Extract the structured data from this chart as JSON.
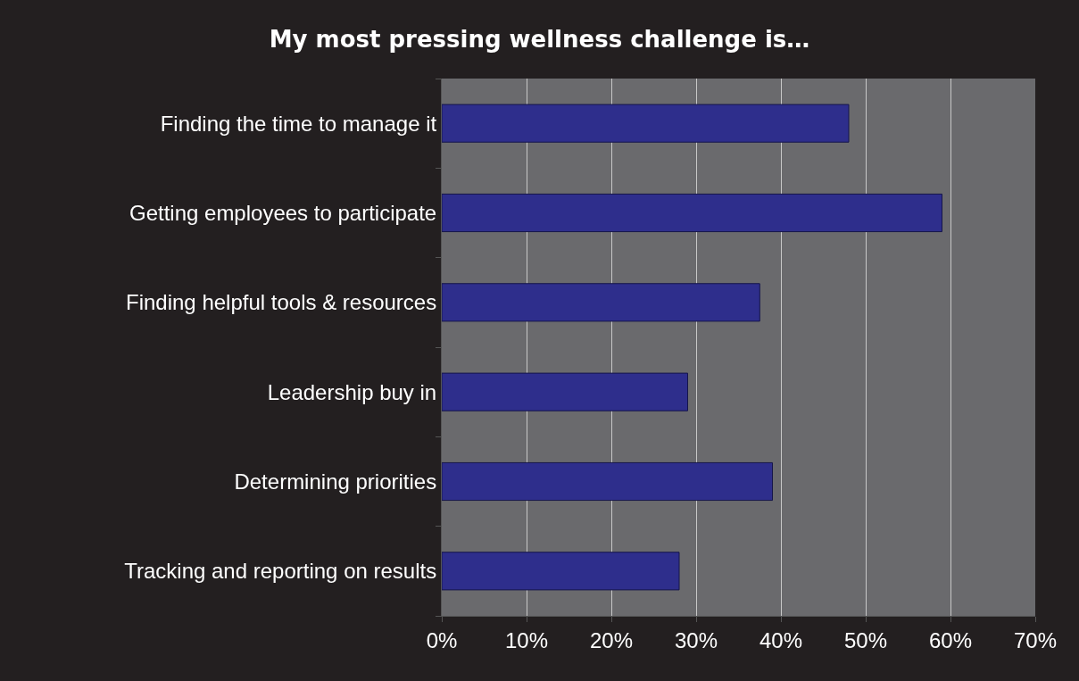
{
  "chart_data": {
    "type": "bar",
    "orientation": "horizontal",
    "title": "My most pressing wellness challenge is…",
    "categories": [
      "Finding the time to manage it",
      "Getting employees to participate",
      "Finding helpful tools & resources",
      "Leadership buy in",
      "Determining priorities",
      "Tracking and reporting on results"
    ],
    "values": [
      48,
      59,
      37.5,
      29,
      39,
      28
    ],
    "color": "#2e2e8c",
    "xlim": [
      0,
      70
    ],
    "xticks": [
      {
        "value": 0,
        "label": "0%"
      },
      {
        "value": 10,
        "label": "10%"
      },
      {
        "value": 20,
        "label": "20%"
      },
      {
        "value": 30,
        "label": "30%"
      },
      {
        "value": 40,
        "label": "40%"
      },
      {
        "value": 50,
        "label": "50%"
      },
      {
        "value": 60,
        "label": "60%"
      },
      {
        "value": 70,
        "label": "70%"
      }
    ],
    "grid": "x"
  }
}
